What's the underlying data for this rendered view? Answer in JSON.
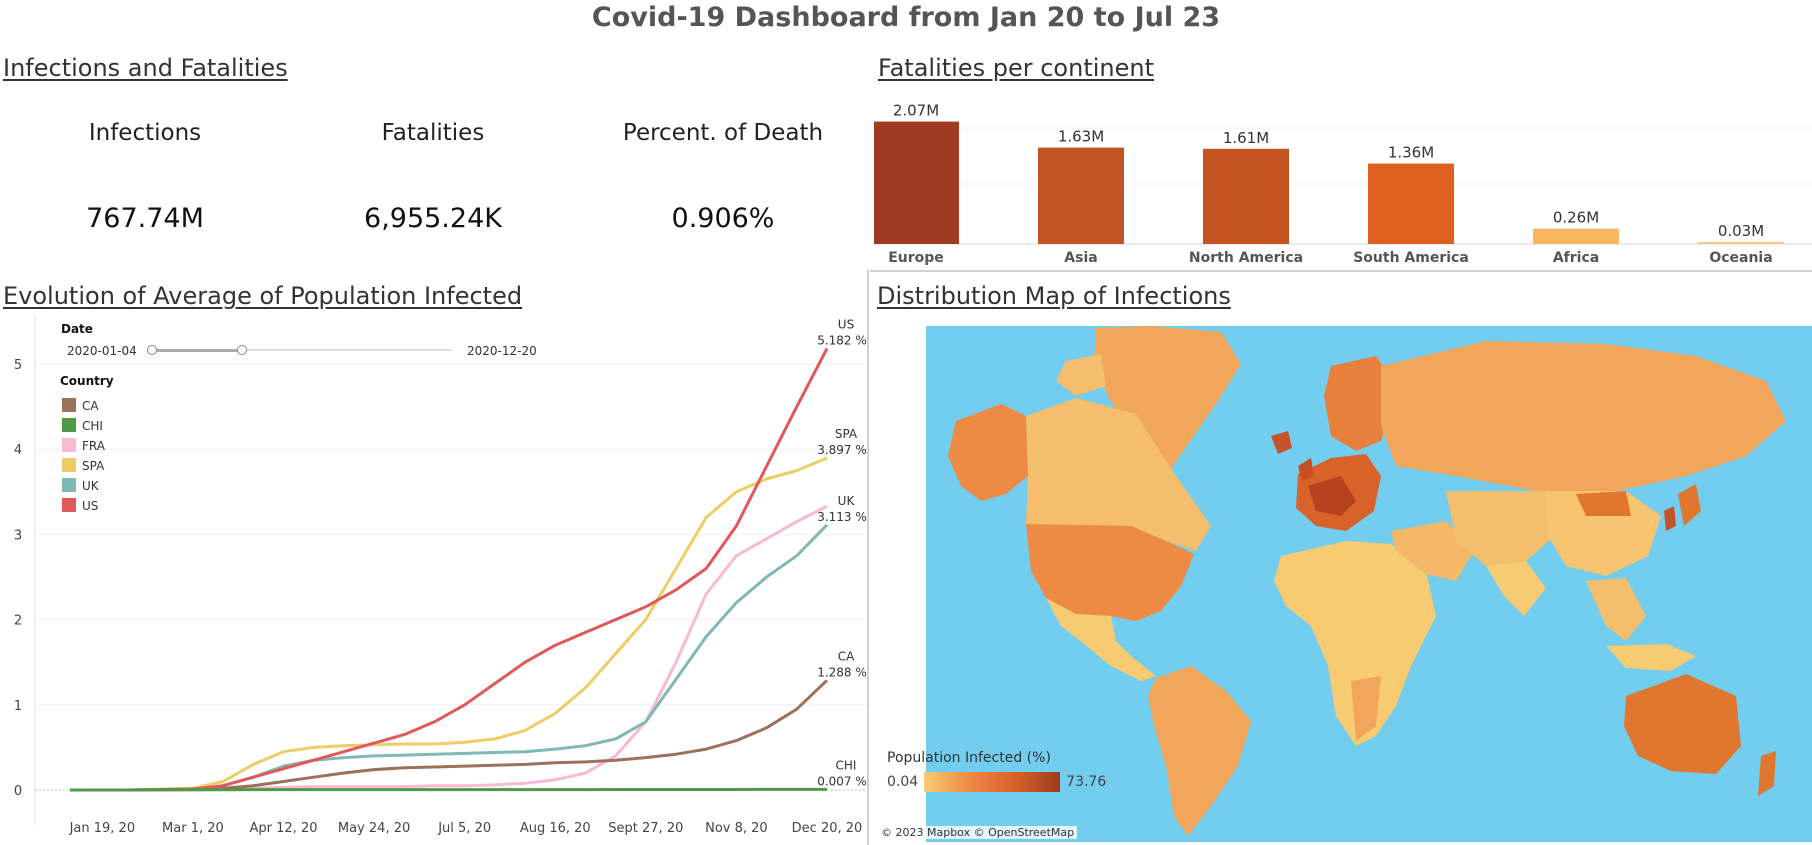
{
  "dashboard": {
    "title": "Covid-19 Dashboard from Jan 20 to Jul 23"
  },
  "kpi": {
    "section_title": "Infections and Fatalities",
    "items": [
      {
        "label": "Infections",
        "value": "767.74M"
      },
      {
        "label": "Fatalities",
        "value": "6,955.24K"
      },
      {
        "label": "Percent. of Death",
        "value": "0.906%"
      }
    ]
  },
  "continents": {
    "section_title": "Fatalities per continent",
    "colors": {
      "low": "#F7B760",
      "high": "#9E3B20"
    }
  },
  "evolution": {
    "section_title": "Evolution of Average of  Population Infected",
    "date_filter": {
      "label": "Date",
      "start": "2020-01-04",
      "end": "2020-12-20"
    },
    "legend_title": "Country"
  },
  "map": {
    "section_title": "Distribution Map of Infections",
    "legend_title": "Population Infected (%)",
    "legend_min": "0.04",
    "legend_max": "73.76",
    "attribution": "© 2023 Mapbox © OpenStreetMap",
    "ocean_color": "#72CDEF"
  },
  "chart_data": [
    {
      "type": "bar",
      "categories": [
        "Europe",
        "Asia",
        "North America",
        "South America",
        "Africa",
        "Oceania"
      ],
      "values": [
        2.07,
        1.63,
        1.61,
        1.36,
        0.26,
        0.03
      ],
      "labels": [
        "2.07M",
        "1.63M",
        "1.61M",
        "1.36M",
        "0.26M",
        "0.03M"
      ],
      "colors": [
        "#9E3B20",
        "#C45423",
        "#C45523",
        "#DE6122",
        "#F7B760",
        "#F9C880"
      ],
      "ylim": [
        0,
        2.3
      ],
      "grid": true
    },
    {
      "type": "line",
      "x_ticks": [
        "Jan 19, 20",
        "Mar 1, 20",
        "Apr 12, 20",
        "May 24, 20",
        "Jul 5, 20",
        "Aug 16, 20",
        "Sept 27, 20",
        "Nov 8, 20",
        "Dec 20, 20"
      ],
      "y_ticks": [
        0,
        1,
        2,
        3,
        4,
        5
      ],
      "ylim": [
        0,
        5.4
      ],
      "x_range": [
        "2020-01-04",
        "2020-12-20"
      ],
      "x": [
        "2020-01-04",
        "2020-02-01",
        "2020-03-01",
        "2020-03-15",
        "2020-03-29",
        "2020-04-12",
        "2020-04-26",
        "2020-05-10",
        "2020-05-24",
        "2020-06-07",
        "2020-06-21",
        "2020-07-05",
        "2020-07-19",
        "2020-08-02",
        "2020-08-16",
        "2020-08-30",
        "2020-09-13",
        "2020-09-27",
        "2020-10-11",
        "2020-10-25",
        "2020-11-08",
        "2020-11-22",
        "2020-12-06",
        "2020-12-20"
      ],
      "series": [
        {
          "name": "CA",
          "color": "#9C7159",
          "end_label": "1.288 %",
          "values": [
            0,
            0,
            0.01,
            0.02,
            0.05,
            0.1,
            0.15,
            0.2,
            0.24,
            0.26,
            0.27,
            0.28,
            0.29,
            0.3,
            0.32,
            0.33,
            0.35,
            0.38,
            0.42,
            0.48,
            0.58,
            0.73,
            0.95,
            1.288
          ]
        },
        {
          "name": "CHI",
          "color": "#4E9A48",
          "end_label": "0.007 %",
          "values": [
            0,
            0,
            0.003,
            0.004,
            0.005,
            0.005,
            0.005,
            0.005,
            0.005,
            0.005,
            0.005,
            0.005,
            0.005,
            0.005,
            0.005,
            0.005,
            0.006,
            0.006,
            0.006,
            0.006,
            0.006,
            0.007,
            0.007,
            0.007
          ]
        },
        {
          "name": "FRA",
          "color": "#F8B9D4",
          "end_label": "",
          "values": [
            0,
            0,
            0,
            0.01,
            0.02,
            0.03,
            0.04,
            0.04,
            0.04,
            0.04,
            0.05,
            0.05,
            0.06,
            0.08,
            0.12,
            0.2,
            0.4,
            0.8,
            1.5,
            2.3,
            2.75,
            2.95,
            3.15,
            3.33
          ]
        },
        {
          "name": "SPA",
          "color": "#EECC66",
          "end_label": "3.897 %",
          "values": [
            0,
            0,
            0.02,
            0.1,
            0.3,
            0.45,
            0.5,
            0.52,
            0.53,
            0.54,
            0.54,
            0.56,
            0.6,
            0.7,
            0.9,
            1.2,
            1.6,
            2.0,
            2.6,
            3.2,
            3.5,
            3.65,
            3.75,
            3.897
          ]
        },
        {
          "name": "UK",
          "color": "#7FB8B5",
          "end_label": "3.113 %",
          "values": [
            0,
            0,
            0.01,
            0.05,
            0.15,
            0.28,
            0.35,
            0.38,
            0.4,
            0.41,
            0.42,
            0.43,
            0.44,
            0.45,
            0.48,
            0.52,
            0.6,
            0.8,
            1.3,
            1.8,
            2.2,
            2.5,
            2.75,
            3.113
          ]
        },
        {
          "name": "US",
          "color": "#E0585B",
          "end_label": "5.182 %",
          "values": [
            0,
            0,
            0.01,
            0.05,
            0.15,
            0.25,
            0.35,
            0.45,
            0.55,
            0.65,
            0.8,
            1.0,
            1.25,
            1.5,
            1.7,
            1.85,
            2.0,
            2.15,
            2.35,
            2.6,
            3.1,
            3.8,
            4.5,
            5.182
          ]
        }
      ]
    }
  ]
}
